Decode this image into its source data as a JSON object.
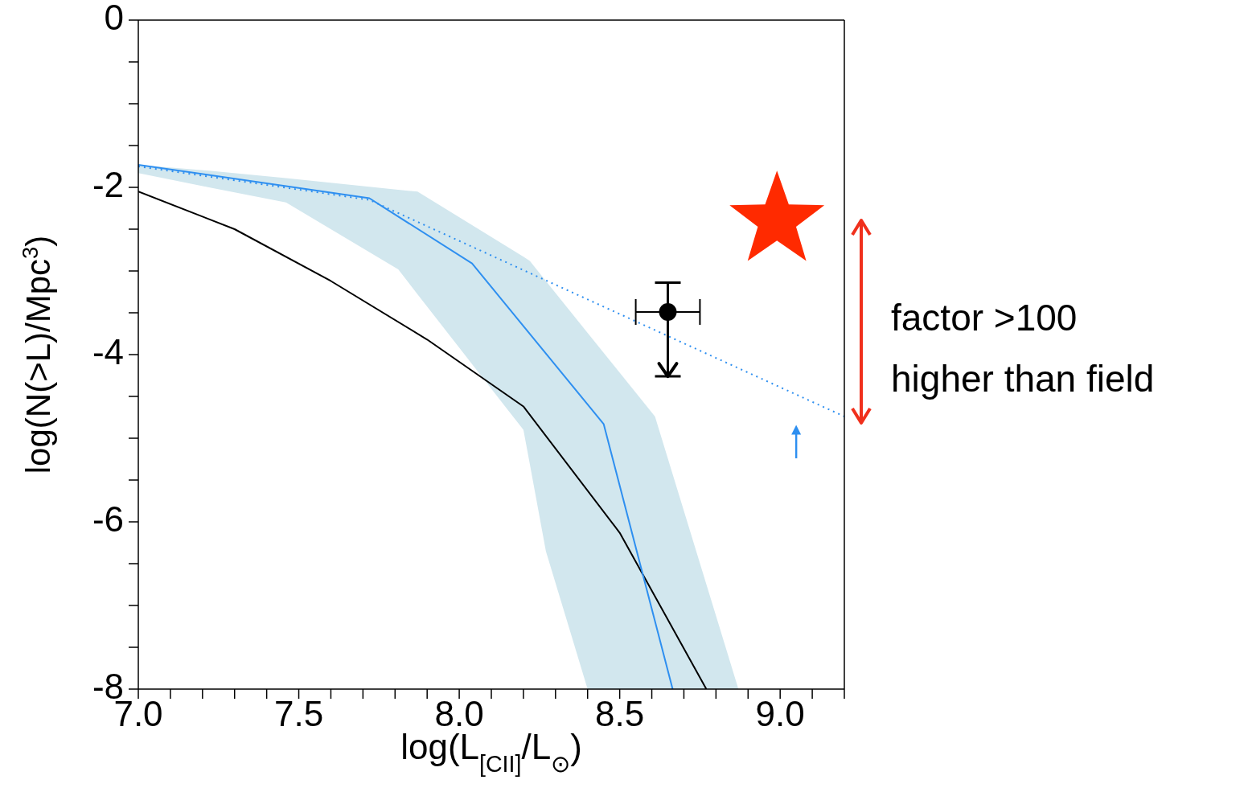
{
  "chart_data": {
    "type": "line",
    "xlabel": "log(L$_{[CII]}$/L$_{⊙}$)",
    "ylabel": "log(N(>L)/Mpc$^{3}$)",
    "xlim": [
      7.0,
      9.2
    ],
    "ylim": [
      -8,
      0
    ],
    "xticks": [
      {
        "value": 7.0,
        "label": "7.0"
      },
      {
        "value": 7.1,
        "label": null
      },
      {
        "value": 7.2,
        "label": null
      },
      {
        "value": 7.3,
        "label": null
      },
      {
        "value": 7.4,
        "label": null
      },
      {
        "value": 7.5,
        "label": "7.5"
      },
      {
        "value": 7.6,
        "label": null
      },
      {
        "value": 7.7,
        "label": null
      },
      {
        "value": 7.8,
        "label": null
      },
      {
        "value": 7.9,
        "label": null
      },
      {
        "value": 8.0,
        "label": "8.0"
      },
      {
        "value": 8.1,
        "label": null
      },
      {
        "value": 8.2,
        "label": null
      },
      {
        "value": 8.3,
        "label": null
      },
      {
        "value": 8.4,
        "label": null
      },
      {
        "value": 8.5,
        "label": "8.5"
      },
      {
        "value": 8.6,
        "label": null
      },
      {
        "value": 8.7,
        "label": null
      },
      {
        "value": 8.8,
        "label": null
      },
      {
        "value": 8.9,
        "label": null
      },
      {
        "value": 9.0,
        "label": "9.0"
      },
      {
        "value": 9.1,
        "label": null
      },
      {
        "value": 9.2,
        "label": null
      }
    ],
    "yticks": [
      -8,
      {
        "value": -7.5,
        "label": null
      },
      {
        "value": -7,
        "label": null
      },
      {
        "value": -6.5,
        "label": null
      },
      -6,
      {
        "value": -5.5,
        "label": null
      },
      {
        "value": -5,
        "label": null
      },
      {
        "value": -4.5,
        "label": null
      },
      -4,
      {
        "value": -3.5,
        "label": null
      },
      {
        "value": -3,
        "label": null
      },
      {
        "value": -2.5,
        "label": null
      },
      -2,
      {
        "value": -1.5,
        "label": null
      },
      {
        "value": -1,
        "label": null
      },
      {
        "value": -0.5,
        "label": null
      },
      0
    ],
    "grid": false,
    "legend": false,
    "annotations": [
      "factor >100 higher than field"
    ],
    "series": [
      {
        "type": "area",
        "color": "#d2e7ee",
        "x": [
          7.0,
          7.22,
          7.46,
          7.81,
          7.87,
          8.2,
          8.22,
          8.27,
          8.4,
          8.61,
          8.87
        ],
        "values": [
          null,
          null,
          null,
          null,
          null,
          null,
          null,
          null,
          null,
          null,
          null
        ],
        "lower": [
          -1.83,
          -2.0,
          -2.18,
          -2.98,
          -3.28,
          -4.9,
          -5.31,
          -6.35,
          -8,
          -8,
          -8
        ],
        "upper": [
          -1.73,
          -1.8,
          -1.89,
          -2.03,
          -2.05,
          -2.83,
          -2.88,
          -3.12,
          -3.74,
          -4.74,
          -8
        ]
      },
      {
        "color": "#000000",
        "line_style": "solid",
        "x": [
          7.0,
          7.3,
          7.6,
          7.9,
          8.2,
          8.5,
          8.77
        ],
        "values": [
          -2.05,
          -2.5,
          -3.12,
          -3.82,
          -4.62,
          -6.13,
          -8
        ]
      },
      {
        "color": "#2e8ff0",
        "line_style": "solid",
        "x": [
          7.0,
          7.72,
          8.04,
          8.45,
          8.665
        ],
        "values": [
          -1.73,
          -2.13,
          -2.91,
          -4.83,
          -8
        ]
      },
      {
        "color": "#2e8ff0",
        "line_style": "dotted",
        "x": [
          7.0,
          7.72,
          9.2
        ],
        "values": [
          -1.75,
          -2.15,
          -4.74
        ]
      },
      {
        "type": "scatter",
        "marker": "circle",
        "color": "#000000",
        "x": [
          8.65
        ],
        "values": [
          -3.49
        ],
        "errors": [
          [
            -4.26,
            -3.14
          ]
        ],
        "xerrors": [
          [
            8.55,
            8.75
          ]
        ]
      },
      {
        "type": "scatter",
        "marker": "star",
        "color": "#ff2a00",
        "x": [
          8.99
        ],
        "values": [
          -2.34
        ]
      },
      {
        "type": "scatter",
        "marker": "triangle",
        "color": "#2e8ff0",
        "x": [
          9.05
        ],
        "values": [
          -4.9
        ],
        "errors": [
          [
            -5.24,
            -4.9
          ]
        ]
      }
    ]
  }
}
